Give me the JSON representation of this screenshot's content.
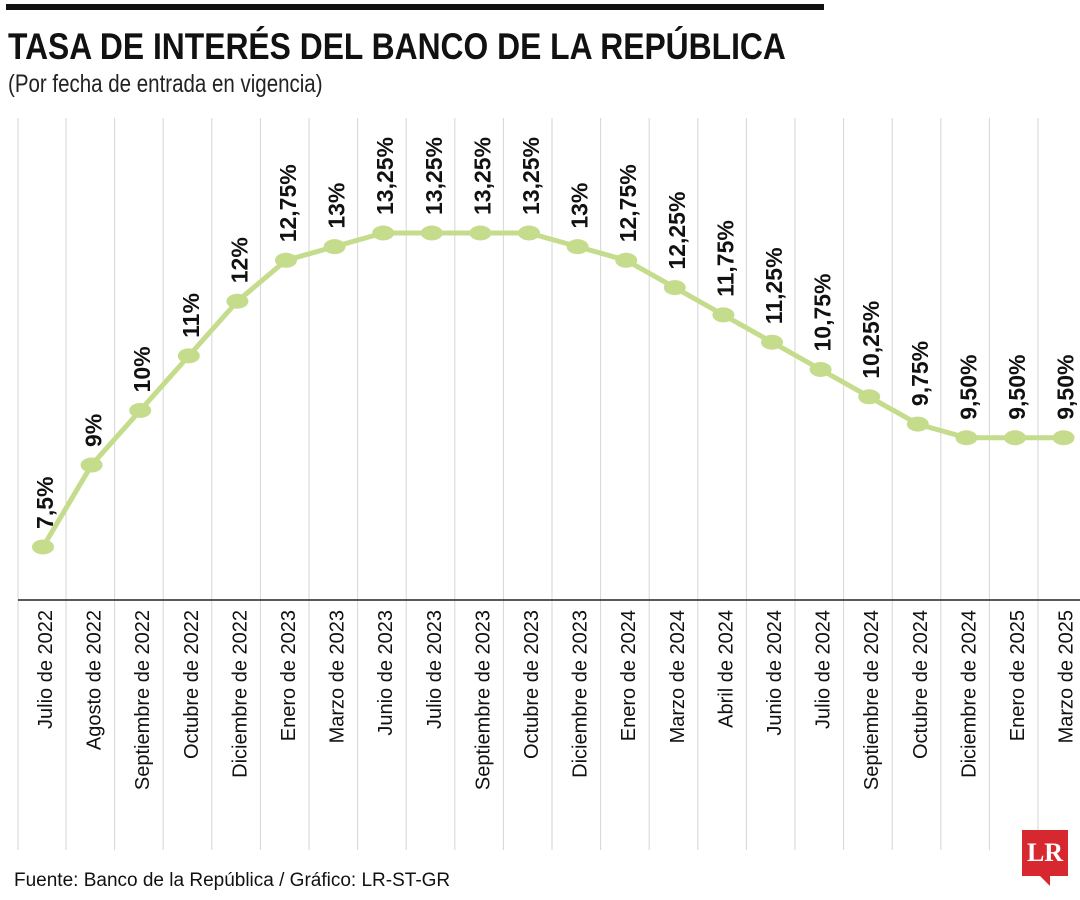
{
  "header": {
    "title": "TASA DE INTERÉS DEL BANCO DE LA REPÚBLICA",
    "subtitle": "(Por fecha de entrada en vigencia)"
  },
  "footer": {
    "source": "Fuente: Banco de la República / Gráfico: LR-ST-GR",
    "logo_text": "LR"
  },
  "colors": {
    "line": "#c5dc8c",
    "marker": "#c5dc8c",
    "grid": "#d6d6d6",
    "axis": "#222222",
    "text": "#111111",
    "logo": "#d7282f"
  },
  "chart_data": {
    "type": "line",
    "title": "TASA DE INTERÉS DEL BANCO DE LA REPÚBLICA",
    "subtitle": "(Por fecha de entrada en vigencia)",
    "xlabel": "",
    "ylabel": "",
    "grid": "vertical",
    "ylim": [
      0,
      15
    ],
    "categories": [
      "Julio de 2022",
      "Agosto de 2022",
      "Septiembre de 2022",
      "Octubre de 2022",
      "Diciembre de 2022",
      "Enero de 2023",
      "Marzo de 2023",
      "Junio de 2023",
      "Julio de 2023",
      "Septiembre de 2023",
      "Octubre de 2023",
      "Diciembre de 2023",
      "Enero de 2024",
      "Marzo de 2024",
      "Abril de 2024",
      "Junio de 2024",
      "Julio de 2024",
      "Septiembre de 2024",
      "Octubre de 2024",
      "Diciembre de 2024",
      "Enero de 2025",
      "Marzo de 2025"
    ],
    "values": [
      7.5,
      9,
      10,
      11,
      12,
      12.75,
      13,
      13.25,
      13.25,
      13.25,
      13.25,
      13,
      12.75,
      12.25,
      11.75,
      11.25,
      10.75,
      10.25,
      9.75,
      9.5,
      9.5,
      9.5
    ],
    "labels": [
      "7,5%",
      "9%",
      "10%",
      "11%",
      "12%",
      "12,75%",
      "13%",
      "13,25%",
      "13,25%",
      "13,25%",
      "13,25%",
      "13%",
      "12,75%",
      "12,25%",
      "11,75%",
      "11,25%",
      "10,75%",
      "10,25%",
      "9,75%",
      "9,50%",
      "9,50%",
      "9,50%"
    ]
  }
}
